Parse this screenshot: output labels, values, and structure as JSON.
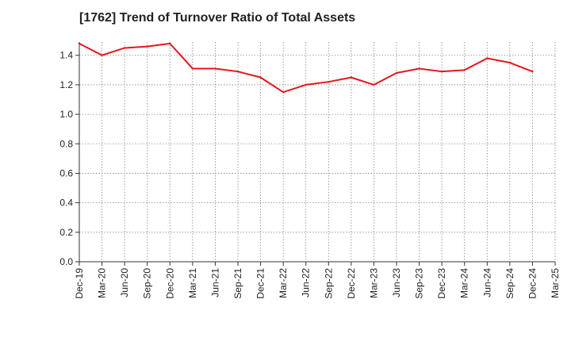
{
  "chart_data": {
    "type": "line",
    "title": "[1762]  Trend of Turnover Ratio of Total Assets",
    "xlabel": "",
    "ylabel": "",
    "x_tick_labels": [
      "Dec-19",
      "Mar-20",
      "Jun-20",
      "Sep-20",
      "Dec-20",
      "Mar-21",
      "Jun-21",
      "Sep-21",
      "Dec-21",
      "Mar-22",
      "Jun-22",
      "Sep-22",
      "Dec-22",
      "Mar-23",
      "Jun-23",
      "Sep-23",
      "Dec-23",
      "Mar-24",
      "Jun-24",
      "Sep-24",
      "Dec-24",
      "Mar-25"
    ],
    "y_tick_labels": [
      "0.0",
      "0.2",
      "0.4",
      "0.6",
      "0.8",
      "1.0",
      "1.2",
      "1.4"
    ],
    "y_ticks": [
      0,
      0.2,
      0.4,
      0.6,
      0.8,
      1.0,
      1.2,
      1.4
    ],
    "ylim": [
      0,
      1.49
    ],
    "grid": true,
    "series": [
      {
        "color": "#e8141c",
        "points": [
          {
            "x": "Dec-19",
            "y": 1.48
          },
          {
            "x": "Mar-20",
            "y": 1.4
          },
          {
            "x": "Jun-20",
            "y": 1.45
          },
          {
            "x": "Sep-20",
            "y": 1.46
          },
          {
            "x": "Dec-20",
            "y": 1.48
          },
          {
            "x": "Mar-21",
            "y": 1.31
          },
          {
            "x": "Jun-21",
            "y": 1.31
          },
          {
            "x": "Sep-21",
            "y": 1.29
          },
          {
            "x": "Dec-21",
            "y": 1.25
          },
          {
            "x": "Mar-22",
            "y": 1.15
          },
          {
            "x": "Jun-22",
            "y": 1.2
          },
          {
            "x": "Sep-22",
            "y": 1.22
          },
          {
            "x": "Dec-22",
            "y": 1.25
          },
          {
            "x": "Mar-23",
            "y": 1.2
          },
          {
            "x": "Jun-23",
            "y": 1.28
          },
          {
            "x": "Sep-23",
            "y": 1.31
          },
          {
            "x": "Dec-23",
            "y": 1.29
          },
          {
            "x": "Mar-24",
            "y": 1.3
          },
          {
            "x": "Jun-24",
            "y": 1.38
          },
          {
            "x": "Sep-24",
            "y": 1.35
          },
          {
            "x": "Dec-24",
            "y": 1.29
          }
        ]
      }
    ]
  }
}
